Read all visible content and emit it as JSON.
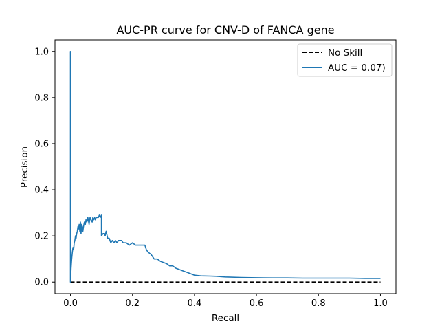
{
  "chart_data": {
    "type": "line",
    "title": "AUC-PR curve for CNV-D of FANCA gene",
    "xlabel": "Recall",
    "ylabel": "Precision",
    "xlim": [
      -0.05,
      1.05
    ],
    "ylim": [
      -0.05,
      1.05
    ],
    "x_ticks": [
      0.0,
      0.2,
      0.4,
      0.6,
      0.8,
      1.0
    ],
    "x_tick_labels": [
      "0.0",
      "0.2",
      "0.4",
      "0.6",
      "0.8",
      "1.0"
    ],
    "y_ticks": [
      0.0,
      0.2,
      0.4,
      0.6,
      0.8,
      1.0
    ],
    "y_tick_labels": [
      "0.0",
      "0.2",
      "0.4",
      "0.6",
      "0.8",
      "1.0"
    ],
    "grid": false,
    "legend_position": "top-right",
    "series": [
      {
        "name": "No Skill",
        "color": "#000000",
        "style": "dashed",
        "x": [
          0.0,
          1.0
        ],
        "y": [
          0.0,
          0.0
        ]
      },
      {
        "name": "AUC = 0.07)",
        "color": "#1f77b4",
        "style": "solid",
        "x": [
          0.0,
          0.0,
          0.0,
          0.002,
          0.004,
          0.006,
          0.008,
          0.01,
          0.012,
          0.014,
          0.016,
          0.018,
          0.02,
          0.022,
          0.024,
          0.026,
          0.028,
          0.03,
          0.032,
          0.034,
          0.036,
          0.038,
          0.04,
          0.042,
          0.045,
          0.048,
          0.05,
          0.053,
          0.056,
          0.06,
          0.063,
          0.066,
          0.07,
          0.072,
          0.075,
          0.078,
          0.08,
          0.083,
          0.086,
          0.09,
          0.093,
          0.096,
          0.1,
          0.1,
          0.105,
          0.11,
          0.112,
          0.115,
          0.12,
          0.125,
          0.13,
          0.135,
          0.14,
          0.145,
          0.15,
          0.155,
          0.16,
          0.165,
          0.17,
          0.18,
          0.19,
          0.2,
          0.21,
          0.22,
          0.23,
          0.24,
          0.245,
          0.25,
          0.26,
          0.27,
          0.28,
          0.29,
          0.3,
          0.31,
          0.32,
          0.33,
          0.34,
          0.35,
          0.36,
          0.37,
          0.38,
          0.39,
          0.4,
          0.42,
          0.45,
          0.47,
          0.5,
          0.55,
          0.6,
          0.65,
          0.7,
          0.75,
          0.8,
          0.85,
          0.9,
          0.95,
          1.0
        ],
        "y": [
          0.0,
          1.0,
          0.0,
          0.06,
          0.1,
          0.13,
          0.15,
          0.14,
          0.17,
          0.18,
          0.2,
          0.19,
          0.21,
          0.22,
          0.24,
          0.23,
          0.25,
          0.22,
          0.26,
          0.21,
          0.25,
          0.24,
          0.22,
          0.24,
          0.26,
          0.25,
          0.27,
          0.26,
          0.28,
          0.25,
          0.28,
          0.27,
          0.26,
          0.28,
          0.27,
          0.28,
          0.27,
          0.28,
          0.28,
          0.28,
          0.29,
          0.28,
          0.29,
          0.2,
          0.21,
          0.21,
          0.2,
          0.22,
          0.19,
          0.19,
          0.17,
          0.18,
          0.17,
          0.18,
          0.17,
          0.18,
          0.18,
          0.18,
          0.17,
          0.17,
          0.16,
          0.17,
          0.16,
          0.16,
          0.16,
          0.16,
          0.14,
          0.13,
          0.12,
          0.1,
          0.1,
          0.09,
          0.085,
          0.08,
          0.07,
          0.07,
          0.06,
          0.055,
          0.05,
          0.045,
          0.04,
          0.035,
          0.03,
          0.027,
          0.026,
          0.025,
          0.022,
          0.02,
          0.019,
          0.018,
          0.018,
          0.017,
          0.017,
          0.017,
          0.017,
          0.016,
          0.016
        ]
      }
    ]
  }
}
